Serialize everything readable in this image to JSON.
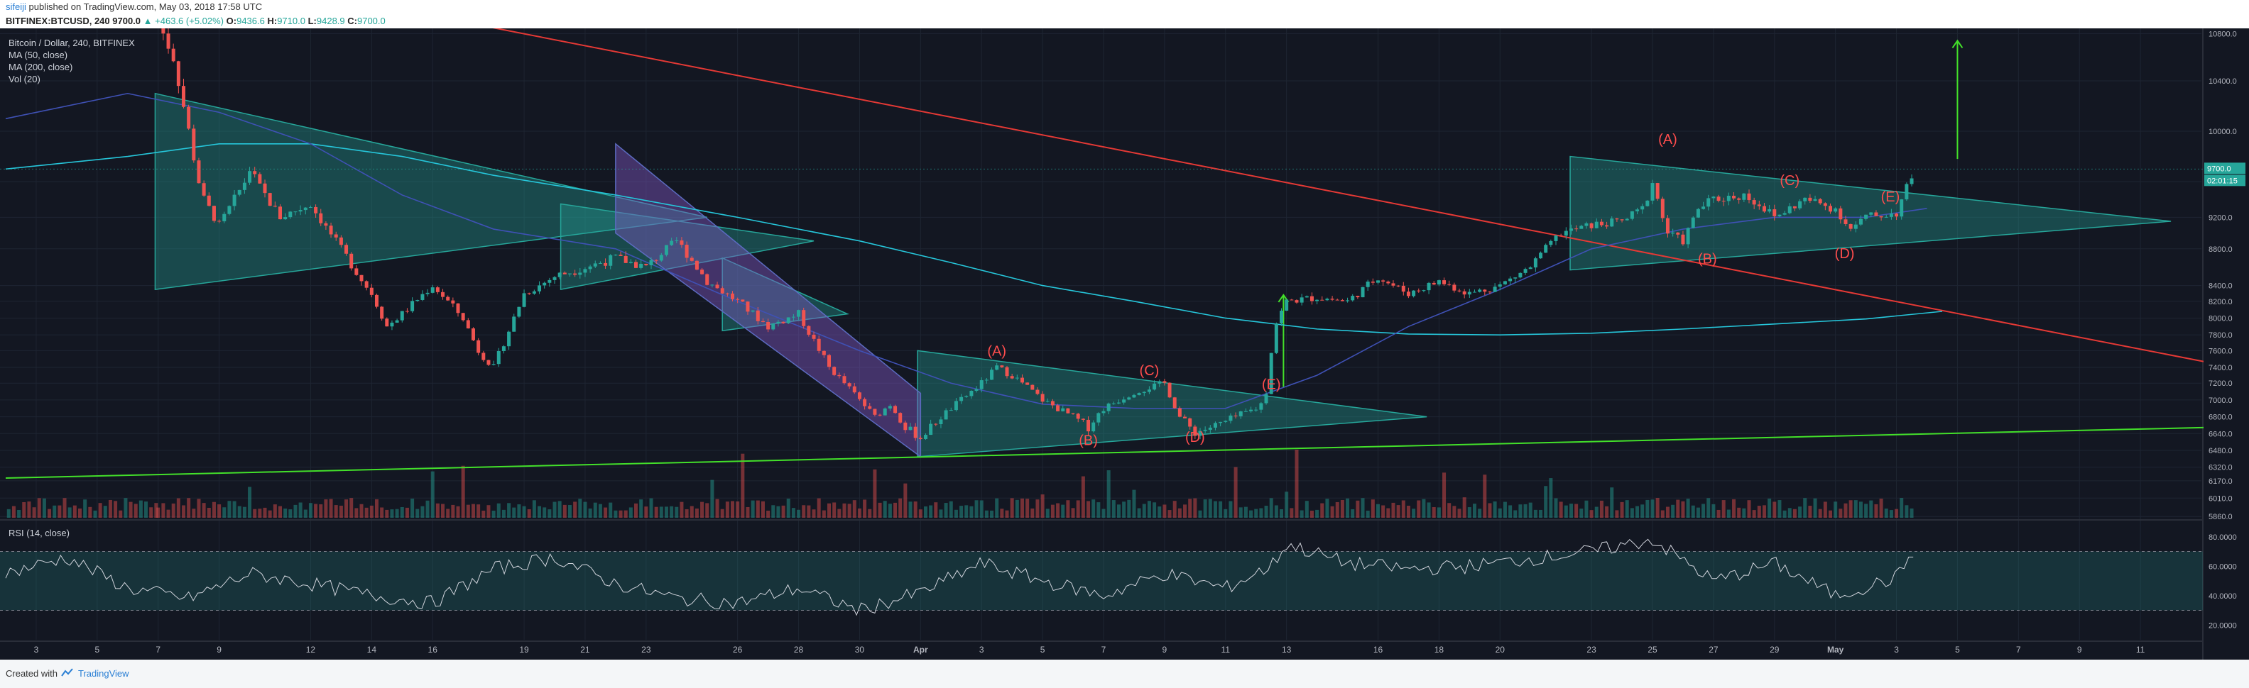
{
  "header": {
    "user": "sifeiji",
    "published_text": "published on TradingView.com, May 03, 2018 17:58 UTC",
    "symbol": "BITFINEX:BTCUSD, 240",
    "last": "9700.0",
    "change": "+463.6 (+5.02%)",
    "open_label": "O:",
    "open": "9436.6",
    "high_label": "H:",
    "high": "9710.0",
    "low_label": "L:",
    "low": "9428.9",
    "close_label": "C:",
    "close": "9700.0"
  },
  "legend": {
    "title": "Bitcoin / Dollar, 240, BITFINEX",
    "ma50": "MA (50, close)",
    "ma200": "MA (200, close)",
    "vol": "Vol (20)",
    "rsi": "RSI (14, close)"
  },
  "footer": {
    "created": "Created with",
    "brand": "TradingView"
  },
  "price_tags": {
    "last": "9700.0",
    "countdown": "02:01:15"
  },
  "chart_data": {
    "type": "candlestick",
    "price_axis": [
      10800,
      10400,
      10000,
      9600,
      9200,
      8800,
      8400,
      8200,
      8000,
      7800,
      7600,
      7400,
      7200,
      7000,
      6800,
      6640,
      6480,
      6320,
      6170,
      6010,
      5860
    ],
    "price_axis_labels": [
      "10800.0",
      "10400.0",
      "10000.0",
      "9600.0",
      "9200.0",
      "8800.0",
      "8400.0",
      "8200.0",
      "8000.0",
      "7800.0",
      "7600.0",
      "7400.0",
      "7200.0",
      "7000.0",
      "6800.0",
      "6640.0",
      "6480.0",
      "6320.0",
      "6170.0",
      "6010.0",
      "5860.0"
    ],
    "rsi_axis_labels": [
      "80.0000",
      "60.0000",
      "40.0000",
      "20.0000"
    ],
    "rsi_axis": [
      80,
      60,
      40,
      20
    ],
    "x_labels": [
      "3",
      "5",
      "7",
      "9",
      "12",
      "14",
      "16",
      "19",
      "21",
      "23",
      "26",
      "28",
      "30",
      "Apr",
      "3",
      "5",
      "7",
      "9",
      "11",
      "13",
      "16",
      "18",
      "20",
      "23",
      "25",
      "27",
      "29",
      "May",
      "3",
      "5",
      "7",
      "9",
      "11"
    ],
    "x_days": [
      3,
      5,
      7,
      9,
      12,
      14,
      16,
      19,
      21,
      23,
      26,
      28,
      30,
      32,
      34,
      36,
      38,
      40,
      42,
      44,
      47,
      49,
      51,
      54,
      56,
      58,
      60,
      62,
      64,
      66,
      68,
      70,
      72
    ],
    "day_range": [
      2,
      74
    ],
    "close_series_days": [
      7,
      7.5,
      8,
      8.5,
      9,
      10,
      11,
      12,
      13,
      14,
      14.5,
      15,
      16,
      17,
      17.5,
      18,
      19,
      20,
      21,
      22,
      23,
      24,
      25,
      26,
      27,
      28,
      29,
      30,
      30.5,
      31,
      31.5,
      32,
      33,
      34,
      34.5,
      35,
      36,
      37,
      37.5,
      38,
      39,
      40,
      40.5,
      41,
      42,
      43,
      43.3,
      43.6,
      44,
      45,
      46,
      47,
      48,
      49,
      50,
      51,
      52,
      53,
      54,
      55,
      55.7,
      56,
      56.5,
      57,
      57.5,
      58,
      59,
      59.5,
      60,
      61,
      62,
      62.5,
      63,
      64,
      64.3,
      64.6
    ],
    "close_series": [
      10900,
      10600,
      10000,
      9400,
      9100,
      9700,
      9200,
      9350,
      8800,
      8300,
      7900,
      8050,
      8400,
      8000,
      7600,
      7400,
      8300,
      8500,
      8600,
      8700,
      8600,
      8900,
      8450,
      8200,
      7900,
      8050,
      7400,
      7000,
      6800,
      6950,
      6700,
      6600,
      6900,
      7200,
      7400,
      7300,
      7000,
      6800,
      6700,
      6900,
      7100,
      7200,
      6800,
      6650,
      6750,
      6900,
      7000,
      7900,
      8200,
      8250,
      8200,
      8500,
      8300,
      8450,
      8300,
      8400,
      8600,
      9000,
      9100,
      9150,
      9300,
      9600,
      9000,
      8900,
      9300,
      9400,
      9450,
      9350,
      9200,
      9400,
      9300,
      9050,
      9200,
      9250,
      9500,
      9700
    ],
    "annotations": [
      {
        "text": "(A)",
        "day": 34.5,
        "price": 7540
      },
      {
        "text": "(B)",
        "day": 37.5,
        "price": 6530
      },
      {
        "text": "(C)",
        "day": 39.5,
        "price": 7300
      },
      {
        "text": "(D)",
        "day": 41,
        "price": 6560
      },
      {
        "text": "(E)",
        "day": 43.5,
        "price": 7130
      },
      {
        "text": "(A)",
        "day": 56.5,
        "price": 9900
      },
      {
        "text": "(B)",
        "day": 57.8,
        "price": 8640
      },
      {
        "text": "(C)",
        "day": 60.5,
        "price": 9560
      },
      {
        "text": "(D)",
        "day": 62.3,
        "price": 8700
      },
      {
        "text": "(E)",
        "day": 63.8,
        "price": 9380
      }
    ],
    "triangles": [
      {
        "name": "triangle-1",
        "points": [
          [
            6.9,
            10300
          ],
          [
            6.9,
            8350
          ],
          [
            25,
            9200
          ]
        ],
        "color": "#26a69a"
      },
      {
        "name": "triangle-2",
        "points": [
          [
            20.2,
            9350
          ],
          [
            20.2,
            8350
          ],
          [
            28.5,
            8900
          ]
        ],
        "color": "#26a69a"
      },
      {
        "name": "triangle-3",
        "points": [
          [
            25.5,
            8700
          ],
          [
            25.5,
            7850
          ],
          [
            29.6,
            8050
          ]
        ],
        "color": "#26a69a"
      },
      {
        "name": "triangle-4",
        "points": [
          [
            31.9,
            7600
          ],
          [
            31.9,
            6420
          ],
          [
            48.6,
            6800
          ]
        ],
        "color": "#26a69a"
      },
      {
        "name": "triangle-5",
        "points": [
          [
            53.3,
            9800
          ],
          [
            53.3,
            8570
          ],
          [
            73,
            9150
          ]
        ],
        "color": "#26a69a"
      }
    ],
    "channel": {
      "points": [
        [
          22,
          9900
        ],
        [
          32,
          7080
        ],
        [
          32,
          6420
        ],
        [
          22,
          9000
        ]
      ],
      "color": "#7e57c2"
    },
    "lines": [
      {
        "name": "red-trendline",
        "from": [
          15,
          11000
        ],
        "to": [
          74.5,
          7440
        ],
        "color": "#e53935"
      },
      {
        "name": "green-trendline",
        "from": [
          2,
          6200
        ],
        "to": [
          74.5,
          6700
        ],
        "color": "#43e02a"
      }
    ],
    "arrows": [
      {
        "name": "arrow-1",
        "from": [
          43.9,
          7150
        ],
        "to": [
          43.9,
          8280
        ],
        "color": "#43e02a"
      },
      {
        "name": "arrow-2",
        "from": [
          66,
          9780
        ],
        "to": [
          66,
          10740
        ],
        "color": "#43e02a"
      }
    ],
    "ma50": {
      "days": [
        2,
        6,
        9,
        12,
        15,
        18,
        22,
        26,
        30,
        33,
        36,
        39,
        42,
        45,
        48,
        51,
        54,
        57,
        60,
        63,
        65
      ],
      "values": [
        10100,
        10300,
        10150,
        9900,
        9450,
        9050,
        8800,
        8200,
        7600,
        7200,
        6950,
        6900,
        6900,
        7300,
        7900,
        8350,
        8800,
        9050,
        9200,
        9200,
        9300
      ]
    },
    "ma200": {
      "days": [
        2,
        6,
        9,
        12,
        15,
        18,
        22,
        26,
        30,
        33,
        36,
        39,
        42,
        45,
        48,
        51,
        54,
        57,
        60,
        63,
        65.5
      ],
      "values": [
        9700,
        9800,
        9900,
        9900,
        9800,
        9650,
        9450,
        9200,
        8900,
        8650,
        8400,
        8200,
        8000,
        7870,
        7810,
        7800,
        7820,
        7870,
        7930,
        7990,
        8080
      ]
    },
    "rsi_days": [
      2,
      4,
      6,
      8,
      10,
      12,
      14,
      16,
      18,
      20,
      22,
      24,
      26,
      28,
      30,
      32,
      34,
      36,
      38,
      40,
      42,
      43.5,
      44,
      46,
      48,
      50,
      52,
      54,
      56,
      58,
      60,
      62,
      64,
      64.6
    ],
    "rsi_values": [
      55,
      66,
      45,
      38,
      55,
      48,
      40,
      35,
      58,
      66,
      48,
      38,
      35,
      45,
      30,
      42,
      62,
      50,
      40,
      55,
      45,
      60,
      75,
      62,
      58,
      60,
      65,
      70,
      78,
      50,
      62,
      40,
      52,
      72
    ]
  },
  "colors": {
    "bg": "#131722",
    "grid": "#1e2532",
    "up": "#26a69a",
    "down": "#ef5350",
    "axis_text": "#b2b5be",
    "ma50": "#3f51b5",
    "ma200": "#26c6da",
    "annotation": "#ff4d4d",
    "last_tag": "#26a69a",
    "countdown_tag": "#26a69a"
  }
}
